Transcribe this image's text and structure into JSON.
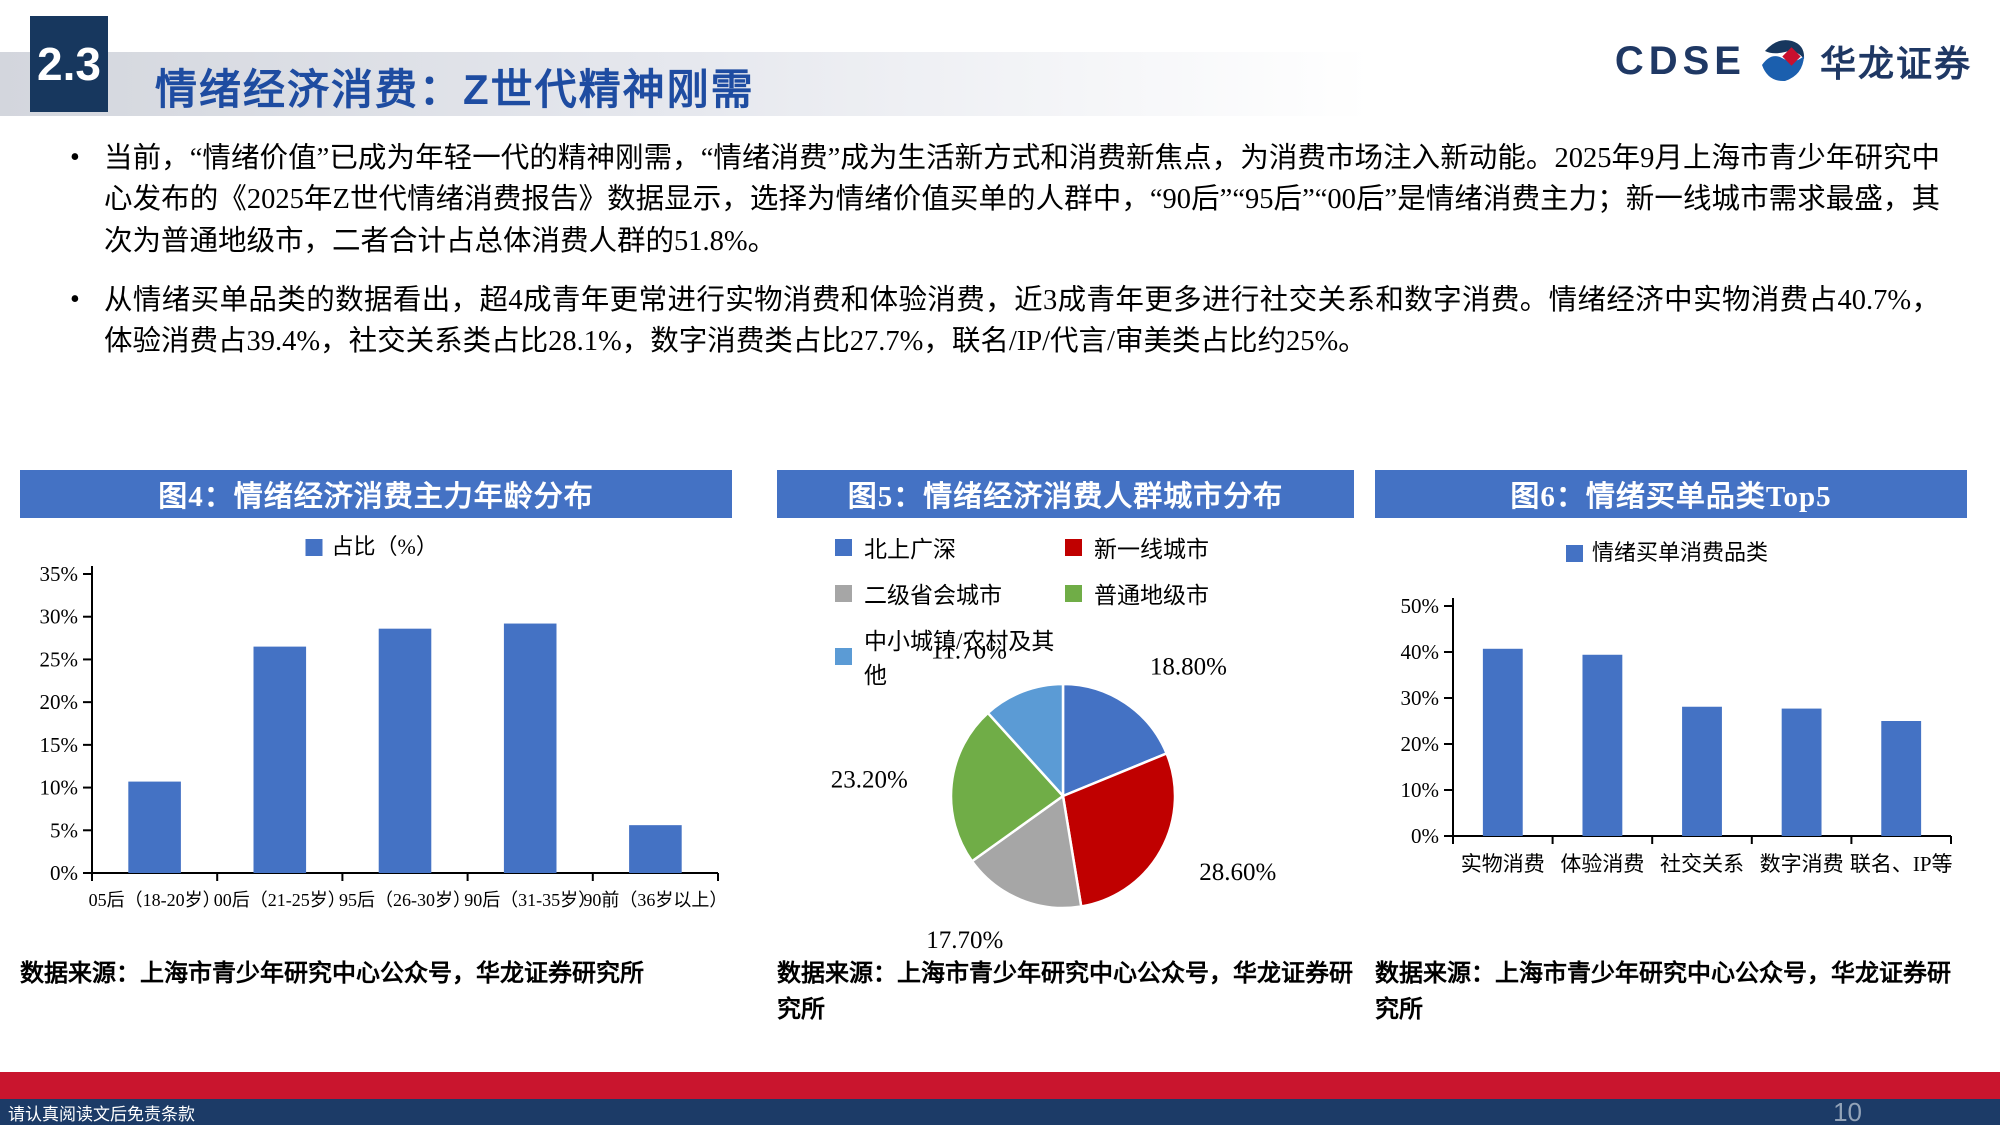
{
  "header": {
    "section_number": "2.3",
    "title": "情绪经济消费：Z世代精神刚需",
    "logo_text": "CDSE",
    "logo_brand": "华龙证券"
  },
  "bullets": [
    "当前，“情绪价值”已成为年轻一代的精神刚需，“情绪消费”成为生活新方式和消费新焦点，为消费市场注入新动能。2025年9月上海市青少年研究中心发布的《2025年Z世代情绪消费报告》数据显示，选择为情绪价值买单的人群中，“90后”“95后”“00后”是情绪消费主力；新一线城市需求最盛，其次为普通地级市，二者合计占总体消费人群的51.8%。",
    "从情绪买单品类的数据看出，超4成青年更常进行实物消费和体验消费，近3成青年更多进行社交关系和数字消费。情绪经济中实物消费占40.7%，体验消费占39.4%，社交关系类占比28.1%，数字消费类占比27.7%，联名/IP/代言/审美类占比约25%。"
  ],
  "chart_data": [
    {
      "type": "bar",
      "title": "图4：情绪经济消费主力年龄分布",
      "legend": "占比（%）",
      "categories": [
        "05后（18-20岁）",
        "00后（21-25岁）",
        "95后（26-30岁）",
        "90后（31-35岁）",
        "90前（36岁以上）"
      ],
      "values": [
        10.7,
        26.5,
        28.6,
        29.2,
        5.6
      ],
      "ylim": [
        0,
        35
      ],
      "ytick_step": 5,
      "color": "#4472C4",
      "grid": false,
      "legend_position": "top",
      "source": "数据来源：上海市青少年研究中心公众号，华龙证券研究所"
    },
    {
      "type": "pie",
      "title": "图5：情绪经济消费人群城市分布",
      "legend_items": [
        {
          "label": "北上广深",
          "color": "#4472C4"
        },
        {
          "label": "新一线城市",
          "color": "#C00000"
        },
        {
          "label": "二级省会城市",
          "color": "#A6A6A6"
        },
        {
          "label": "普通地级市",
          "color": "#70AD47"
        },
        {
          "label": "中小城镇/农村及其他",
          "color": "#5B9BD5"
        }
      ],
      "values": [
        18.8,
        28.6,
        17.7,
        23.2,
        11.7
      ],
      "labels": [
        "18.80%",
        "28.60%",
        "17.70%",
        "23.20%",
        "11.70%"
      ],
      "legend_position": "top",
      "source": "数据来源：上海市青少年研究中心公众号，华龙证券研究所"
    },
    {
      "type": "bar",
      "title": "图6：情绪买单品类Top5",
      "legend": "情绪买单消费品类",
      "categories": [
        "实物消费",
        "体验消费",
        "社交关系",
        "数字消费",
        "联名、IP等"
      ],
      "values": [
        40.7,
        39.4,
        28.1,
        27.7,
        25.0
      ],
      "ylim": [
        0,
        50
      ],
      "ytick_step": 10,
      "color": "#4472C4",
      "grid": false,
      "legend_position": "top",
      "source": "数据来源：上海市青少年研究中心公众号，华龙证券研究所"
    }
  ],
  "footer": {
    "disclaimer": "请认真阅读文后免责条款",
    "page_number": "10"
  },
  "colors": {
    "accent_navy": "#17375E",
    "title_blue": "#1E4CA1",
    "panel_header_blue": "#4472C4",
    "bar_blue": "#4472C4",
    "footer_red": "#C9152E",
    "footer_navy": "#1C3B67"
  }
}
